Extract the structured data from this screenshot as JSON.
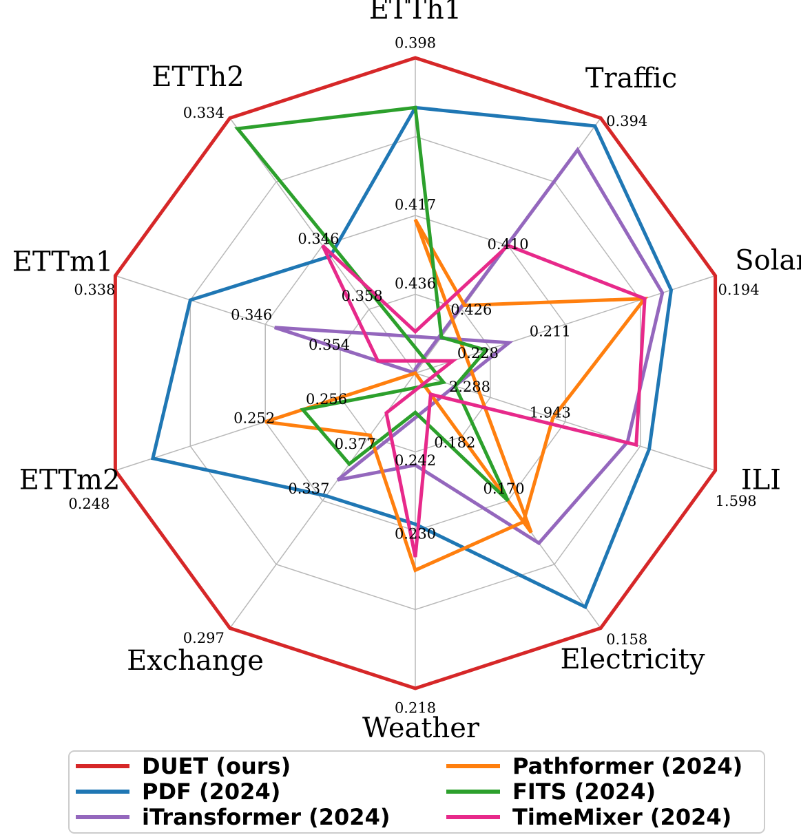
{
  "chart_data": {
    "type": "radar",
    "axes": [
      {
        "name": "ETTh1",
        "ticks": [
          "0.436",
          "0.417",
          "0.398"
        ]
      },
      {
        "name": "Traffic",
        "ticks": [
          "0.426",
          "0.410",
          "0.394"
        ]
      },
      {
        "name": "Solar",
        "ticks": [
          "0.228",
          "0.211",
          "0.194"
        ]
      },
      {
        "name": "ILI",
        "ticks": [
          "2.288",
          "1.943",
          "1.598"
        ]
      },
      {
        "name": "Electricity",
        "ticks": [
          "0.182",
          "0.170",
          "0.158"
        ]
      },
      {
        "name": "Weather",
        "ticks": [
          "0.242",
          "0.230",
          "0.218"
        ]
      },
      {
        "name": "Exchange",
        "ticks": [
          "0.377",
          "0.337",
          "0.297"
        ]
      },
      {
        "name": "ETTm2",
        "ticks": [
          "0.256",
          "0.252",
          "0.248"
        ]
      },
      {
        "name": "ETTm1",
        "ticks": [
          "0.354",
          "0.346",
          "0.338"
        ]
      },
      {
        "name": "ETTh2",
        "ticks": [
          "0.358",
          "0.346",
          "0.334"
        ]
      }
    ],
    "ticks_note": "tick values listed inner ring (0.25) -> middle ring (0.5) -> outer ring (1.0); lower error is farther out",
    "series": [
      {
        "name": "DUET (ours)",
        "color": "#d62728",
        "values": [
          0.398,
          0.394,
          0.194,
          1.598,
          0.158,
          0.218,
          0.297,
          0.248,
          0.338,
          0.334
        ]
      },
      {
        "name": "PDF (2024)",
        "color": "#1f77b4",
        "values": [
          0.404,
          0.395,
          0.199,
          1.75,
          0.16,
          0.231,
          0.34,
          0.249,
          0.342,
          0.348
        ]
      },
      {
        "name": "iTransformer (2024)",
        "color": "#9467bd",
        "values": [
          0.454,
          0.398,
          0.2,
          1.8,
          0.166,
          0.24,
          0.35,
          0.265,
          0.347,
          0.37
        ]
      },
      {
        "name": "Pathformer (2024)",
        "color": "#ff7f0e",
        "values": [
          0.418,
          0.425,
          0.202,
          2.0,
          0.168,
          0.227,
          0.378,
          0.252,
          0.362,
          0.4
        ]
      },
      {
        "name": "FITS (2024)",
        "color": "#2ca02c",
        "values": [
          0.404,
          0.433,
          0.229,
          2.45,
          0.17,
          0.248,
          0.36,
          0.254,
          0.365,
          0.335
        ]
      },
      {
        "name": "TimeMixer (2024)",
        "color": "#e7298a",
        "values": [
          0.445,
          0.41,
          0.202,
          1.78,
          0.19,
          0.228,
          0.392,
          0.262,
          0.358,
          0.346
        ]
      }
    ],
    "legend_position": "bottom",
    "grid": true
  }
}
